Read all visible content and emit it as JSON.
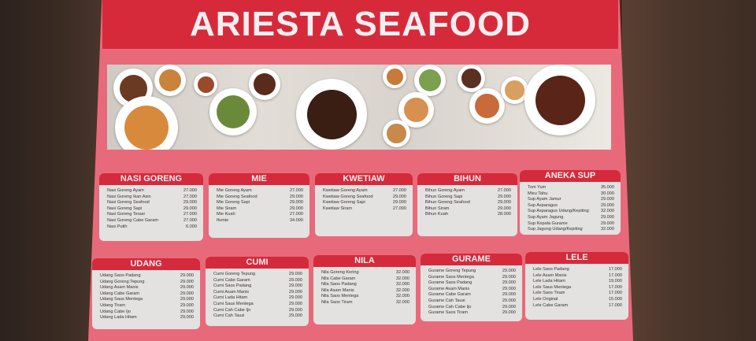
{
  "title": "ARIESTA SEAFOOD",
  "colors": {
    "menu_pink": "#e86a7a",
    "header_red": "#d62a3a",
    "card_bg": "#e3e2e0"
  },
  "sections": [
    {
      "name": "NASI GORENG",
      "items": [
        [
          "Nasi Goreng Ayam",
          "27.000"
        ],
        [
          "Nasi Goreng Ikan Asin",
          "27.000"
        ],
        [
          "Nasi Goreng Seafood",
          "29.000"
        ],
        [
          "Nasi Goreng Sapi",
          "29.000"
        ],
        [
          "Nasi Goreng Terasi",
          "27.000"
        ],
        [
          "Nasi Goreng Cabe Garam",
          "27.000"
        ],
        [
          "Nasi Putih",
          "6.000"
        ]
      ]
    },
    {
      "name": "MIE",
      "items": [
        [
          "Mie Goreng Ayam",
          "27.000"
        ],
        [
          "Mie Goreng Seafood",
          "29.000"
        ],
        [
          "Mie Goreng Sapi",
          "29.000"
        ],
        [
          "Mie Siram",
          "29.000"
        ],
        [
          "Mie Kuah",
          "27.000"
        ],
        [
          "Ifumie",
          "34.000"
        ]
      ]
    },
    {
      "name": "KWETIAW",
      "items": [
        [
          "Kwetiaw Goreng Ayam",
          "27.000"
        ],
        [
          "Kwetiaw Goreng Seafood",
          "29.000"
        ],
        [
          "Kwetiaw Goreng Sapi",
          "29.000"
        ],
        [
          "Kwetiaw Siram",
          "27.000"
        ]
      ]
    },
    {
      "name": "BIHUN",
      "items": [
        [
          "Bihun Goreng Ayam",
          "27.000"
        ],
        [
          "Bihun Goreng Sapi",
          "29.000"
        ],
        [
          "Bihun Goreng Seafood",
          "29.000"
        ],
        [
          "Bihun Siram",
          "29.000"
        ],
        [
          "Bihun Kuah",
          "28.000"
        ]
      ]
    },
    {
      "name": "ANEKA SUP",
      "items": [
        [
          "Tom Yum",
          "35.000"
        ],
        [
          "Misu Tahu",
          "30.000"
        ],
        [
          "Sup Ayam Jamur",
          "29.000"
        ],
        [
          "Sup Asparagus",
          "29.000"
        ],
        [
          "Sup Asparagus Udang/Kepiting",
          "32.000"
        ],
        [
          "Sup Ayam Jagung",
          "29.000"
        ],
        [
          "Sup Kepala Gurame",
          "29.000"
        ],
        [
          "Sup Jagung Udang/Kepiting",
          "32.000"
        ]
      ]
    },
    {
      "name": "UDANG",
      "items": [
        [
          "Udang Saos Padang",
          "29.000"
        ],
        [
          "Udang Goreng Tepung",
          "29.000"
        ],
        [
          "Udang Asam Manis",
          "29.000"
        ],
        [
          "Udang Cabe Garam",
          "29.000"
        ],
        [
          "Udang Saus Mentega",
          "29.000"
        ],
        [
          "Udang Tiram",
          "29.000"
        ],
        [
          "Udang Cabe Ijo",
          "29.000"
        ],
        [
          "Udang Lada Hitam",
          "29.000"
        ]
      ]
    },
    {
      "name": "CUMI",
      "items": [
        [
          "Cumi Goreng Tepung",
          "29.000"
        ],
        [
          "Cumi Cabe Garam",
          "29.000"
        ],
        [
          "Cumi Saos Padang",
          "29.000"
        ],
        [
          "Cumi Asam Manis",
          "29.000"
        ],
        [
          "Cumi Lada Hitam",
          "29.000"
        ],
        [
          "Cumi Saus Mentega",
          "29.000"
        ],
        [
          "Cumi Cah Cabe Ijo",
          "29.000"
        ],
        [
          "Cumi Cah Tausi",
          "29.000"
        ]
      ]
    },
    {
      "name": "NILA",
      "items": [
        [
          "Nila Goreng Kering",
          "32.000"
        ],
        [
          "Nila Cabe Garam",
          "32.000"
        ],
        [
          "Nila Saos Padang",
          "32.000"
        ],
        [
          "Nila Asam Manis",
          "32.000"
        ],
        [
          "Nila Saos Mentega",
          "32.000"
        ],
        [
          "Nila Saos Tiram",
          "32.000"
        ]
      ]
    },
    {
      "name": "GURAME",
      "items": [
        [
          "Gurame Goreng Tepung",
          "29.000"
        ],
        [
          "Gurame Saos Mentega",
          "29.000"
        ],
        [
          "Gurame Saos Padang",
          "29.000"
        ],
        [
          "Gurame Asam Manis",
          "29.000"
        ],
        [
          "Gurame Cabe Garam",
          "29.000"
        ],
        [
          "Gurame Cah Tausi",
          "29.000"
        ],
        [
          "Gurame Cah Cabe Ijo",
          "29.000"
        ],
        [
          "Gurame Saos Tiram",
          "29.000"
        ]
      ]
    },
    {
      "name": "LELE",
      "items": [
        [
          "Lele Saos Padang",
          "17.000"
        ],
        [
          "Lele Asam Manis",
          "17.000"
        ],
        [
          "Lele Lada Hitam",
          "19.000"
        ],
        [
          "Lele Saus Mentega",
          "17.000"
        ],
        [
          "Lele Saos Tiram",
          "17.000"
        ],
        [
          "Lele Original",
          "15.000"
        ],
        [
          "Lele Cabe Garam",
          "17.000"
        ]
      ]
    }
  ]
}
